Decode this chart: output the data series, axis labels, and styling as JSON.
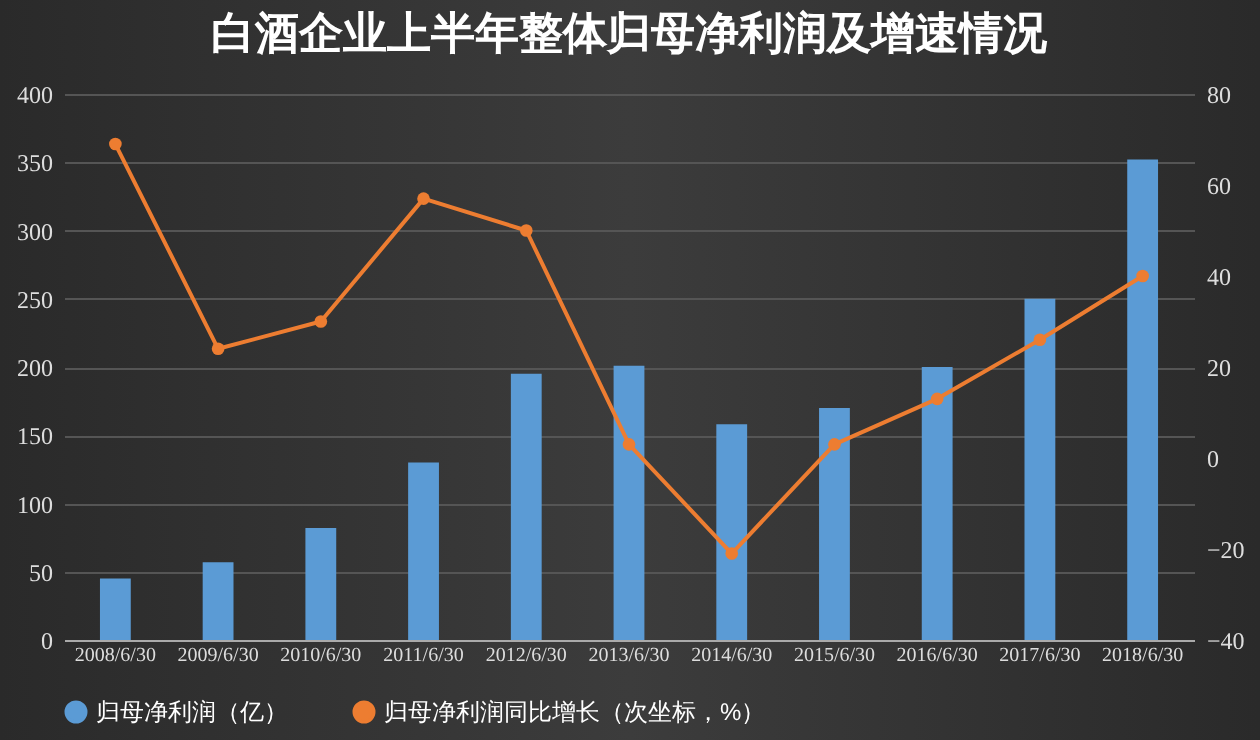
{
  "chart_data": {
    "type": "bar",
    "title": "白酒企业上半年整体归母净利润及增速情况",
    "categories": [
      "2008/6/30",
      "2009/6/30",
      "2010/6/30",
      "2011/6/30",
      "2012/6/30",
      "2013/6/30",
      "2014/6/30",
      "2015/6/30",
      "2016/6/30",
      "2017/6/30",
      "2018/6/30"
    ],
    "series": [
      {
        "name": "归母净利润（亿）",
        "color": "#5b9bd5",
        "values": [
          45,
          57,
          82,
          130,
          195,
          201,
          158,
          170,
          200,
          250,
          352
        ]
      },
      {
        "name": "归母净利润同比增长（次坐标，%）",
        "type": "line",
        "axis": "y2",
        "color": "#ed7d31",
        "marker": "circle",
        "values": [
          69,
          24,
          30,
          57,
          50,
          3,
          -21,
          3,
          13,
          26,
          40
        ]
      }
    ],
    "ylim": [
      0,
      400
    ],
    "yticks": [
      0,
      50,
      100,
      150,
      200,
      250,
      300,
      350,
      400
    ],
    "y2lim": [
      -40,
      80
    ],
    "y2ticks": [
      -40,
      -20,
      0,
      20,
      40,
      60,
      80
    ],
    "grid": "y",
    "legend": "bottom"
  }
}
